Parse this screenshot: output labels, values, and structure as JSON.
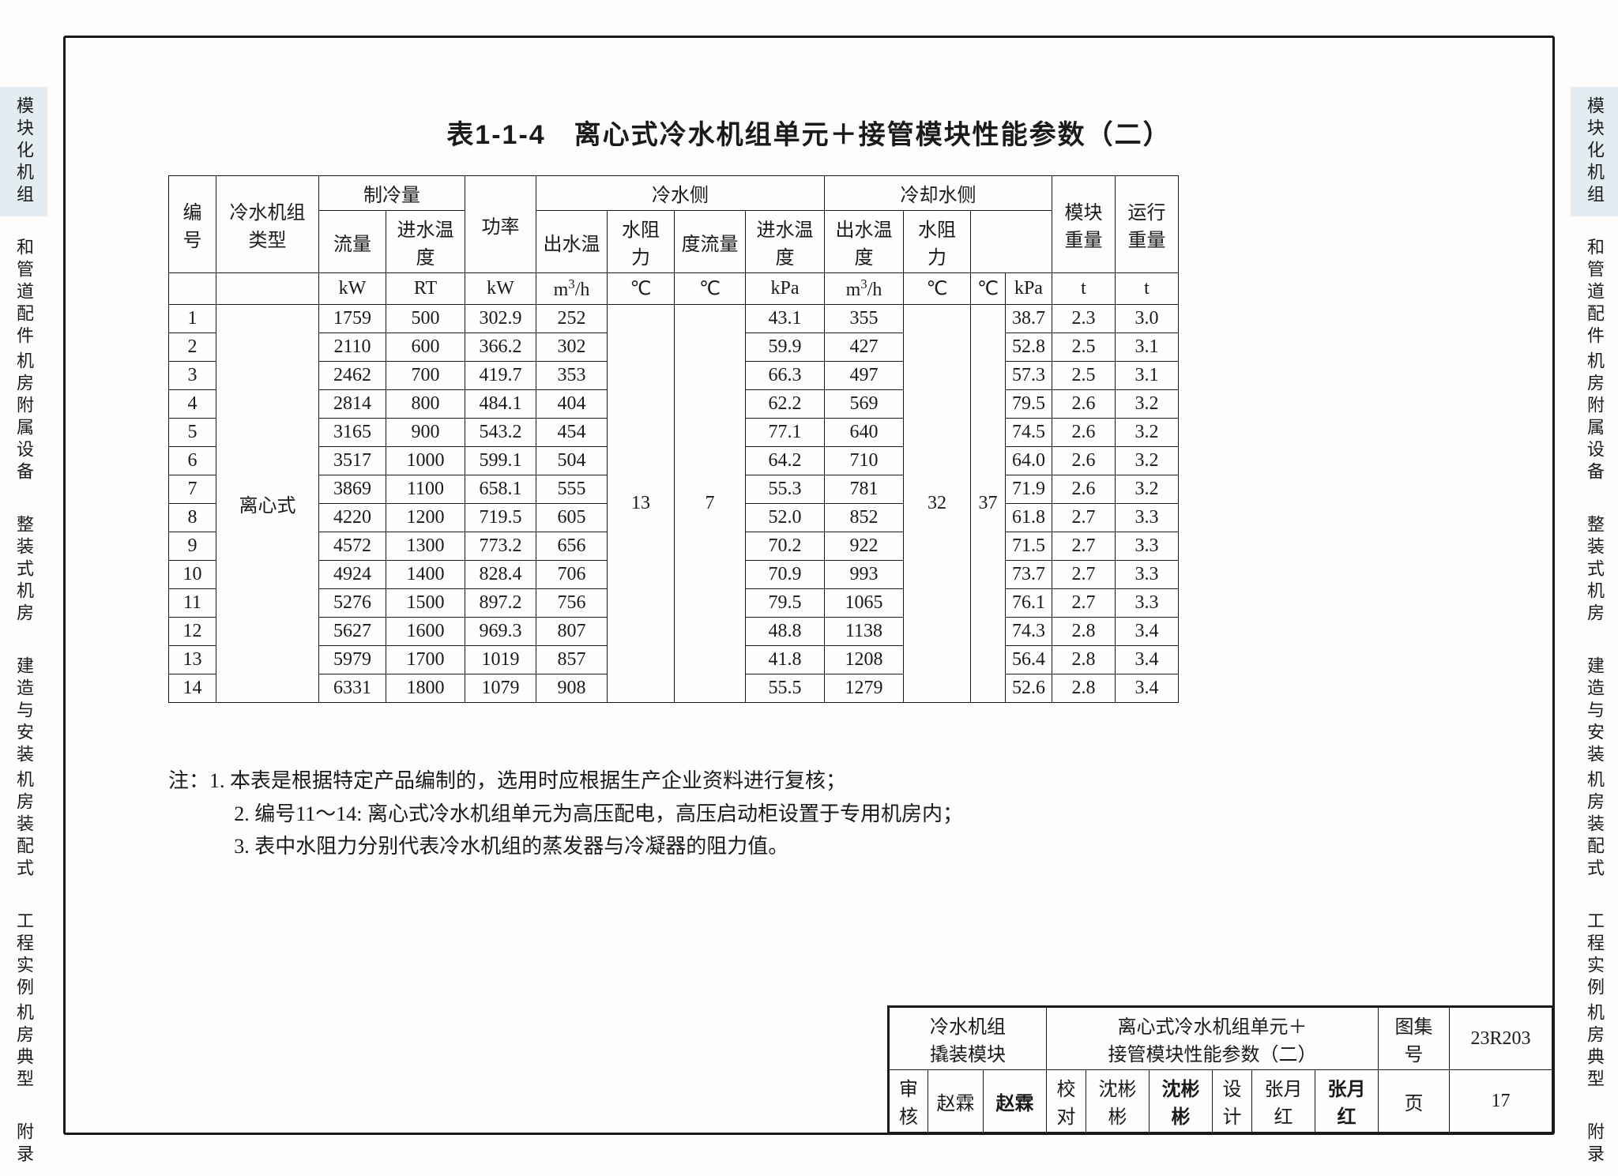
{
  "title": "表1-1-4　离心式冷水机组单元＋接管模块性能参数（二）",
  "tabs": {
    "t1": "模块化机组",
    "t2a": "机房附属设备",
    "t2b": "和管道配件",
    "t3": "整装式机房",
    "t4a": "机房装配式",
    "t4b": "建造与安装",
    "t5a": "机房典型",
    "t5b": "工程实例",
    "t6": "附录"
  },
  "headers": {
    "idx": "编号",
    "type": "冷水机组类型",
    "cap": "制冷量",
    "power": "功率",
    "cold_side": "冷水侧",
    "cool_side": "冷却水侧",
    "mod_weight": "模块重量",
    "run_weight": "运行重量",
    "flow": "流量",
    "in_temp": "进水温度",
    "out_temp": "出水温",
    "res": "水阻力",
    "deg_flow": "度流量",
    "in_temp2": "进水温度",
    "out_temp2": "出水温度",
    "res2": "水阻力"
  },
  "units": {
    "kw": "kW",
    "rt": "RT",
    "kw2": "kW",
    "m3h": "m³/h",
    "c1": "℃",
    "c2": "℃",
    "kpa1": "kPa",
    "m3h2": "m³/h",
    "c3": "℃",
    "c4": "℃",
    "kpa2": "kPa",
    "t1": "t",
    "t2": "t"
  },
  "merged": {
    "type_val": "离心式",
    "cold_in": "13",
    "cold_out": "7",
    "cool_in": "32",
    "cool_out": "37"
  },
  "rows": [
    {
      "i": "1",
      "kw": "1759",
      "rt": "500",
      "pw": "302.9",
      "fl": "252",
      "r1": "43.1",
      "df": "355",
      "r2": "38.7",
      "mw": "2.3",
      "rw": "3.0"
    },
    {
      "i": "2",
      "kw": "2110",
      "rt": "600",
      "pw": "366.2",
      "fl": "302",
      "r1": "59.9",
      "df": "427",
      "r2": "52.8",
      "mw": "2.5",
      "rw": "3.1"
    },
    {
      "i": "3",
      "kw": "2462",
      "rt": "700",
      "pw": "419.7",
      "fl": "353",
      "r1": "66.3",
      "df": "497",
      "r2": "57.3",
      "mw": "2.5",
      "rw": "3.1"
    },
    {
      "i": "4",
      "kw": "2814",
      "rt": "800",
      "pw": "484.1",
      "fl": "404",
      "r1": "62.2",
      "df": "569",
      "r2": "79.5",
      "mw": "2.6",
      "rw": "3.2"
    },
    {
      "i": "5",
      "kw": "3165",
      "rt": "900",
      "pw": "543.2",
      "fl": "454",
      "r1": "77.1",
      "df": "640",
      "r2": "74.5",
      "mw": "2.6",
      "rw": "3.2"
    },
    {
      "i": "6",
      "kw": "3517",
      "rt": "1000",
      "pw": "599.1",
      "fl": "504",
      "r1": "64.2",
      "df": "710",
      "r2": "64.0",
      "mw": "2.6",
      "rw": "3.2"
    },
    {
      "i": "7",
      "kw": "3869",
      "rt": "1100",
      "pw": "658.1",
      "fl": "555",
      "r1": "55.3",
      "df": "781",
      "r2": "71.9",
      "mw": "2.6",
      "rw": "3.2"
    },
    {
      "i": "8",
      "kw": "4220",
      "rt": "1200",
      "pw": "719.5",
      "fl": "605",
      "r1": "52.0",
      "df": "852",
      "r2": "61.8",
      "mw": "2.7",
      "rw": "3.3"
    },
    {
      "i": "9",
      "kw": "4572",
      "rt": "1300",
      "pw": "773.2",
      "fl": "656",
      "r1": "70.2",
      "df": "922",
      "r2": "71.5",
      "mw": "2.7",
      "rw": "3.3"
    },
    {
      "i": "10",
      "kw": "4924",
      "rt": "1400",
      "pw": "828.4",
      "fl": "706",
      "r1": "70.9",
      "df": "993",
      "r2": "73.7",
      "mw": "2.7",
      "rw": "3.3"
    },
    {
      "i": "11",
      "kw": "5276",
      "rt": "1500",
      "pw": "897.2",
      "fl": "756",
      "r1": "79.5",
      "df": "1065",
      "r2": "76.1",
      "mw": "2.7",
      "rw": "3.3"
    },
    {
      "i": "12",
      "kw": "5627",
      "rt": "1600",
      "pw": "969.3",
      "fl": "807",
      "r1": "48.8",
      "df": "1138",
      "r2": "74.3",
      "mw": "2.8",
      "rw": "3.4"
    },
    {
      "i": "13",
      "kw": "5979",
      "rt": "1700",
      "pw": "1019",
      "fl": "857",
      "r1": "41.8",
      "df": "1208",
      "r2": "56.4",
      "mw": "2.8",
      "rw": "3.4"
    },
    {
      "i": "14",
      "kw": "6331",
      "rt": "1800",
      "pw": "1079",
      "fl": "908",
      "r1": "55.5",
      "df": "1279",
      "r2": "52.6",
      "mw": "2.8",
      "rw": "3.4"
    }
  ],
  "notes": {
    "prefix": "注：",
    "n1": "1. 本表是根据特定产品编制的，选用时应根据生产企业资料进行复核；",
    "n2": "2. 编号11～14: 离心式冷水机组单元为高压配电，高压启动柜设置于专用机房内；",
    "n3": "3. 表中水阻力分别代表冷水机组的蒸发器与冷凝器的阻力值。"
  },
  "titleblock": {
    "l1a": "冷水机组",
    "l1b": "撬装模块",
    "r1a": "离心式冷水机组单元＋",
    "r1b": "接管模块性能参数（二）",
    "atlas_label": "图集号",
    "atlas_val": "23R203",
    "audit": "审核",
    "audit_name": "赵霖",
    "audit_sig": "赵霖",
    "check": "校对",
    "check_name": "沈彬彬",
    "check_sig": "沈彬彬",
    "design": "设计",
    "design_name": "张月红",
    "design_sig": "张月红",
    "page_label": "页",
    "page_val": "17"
  }
}
